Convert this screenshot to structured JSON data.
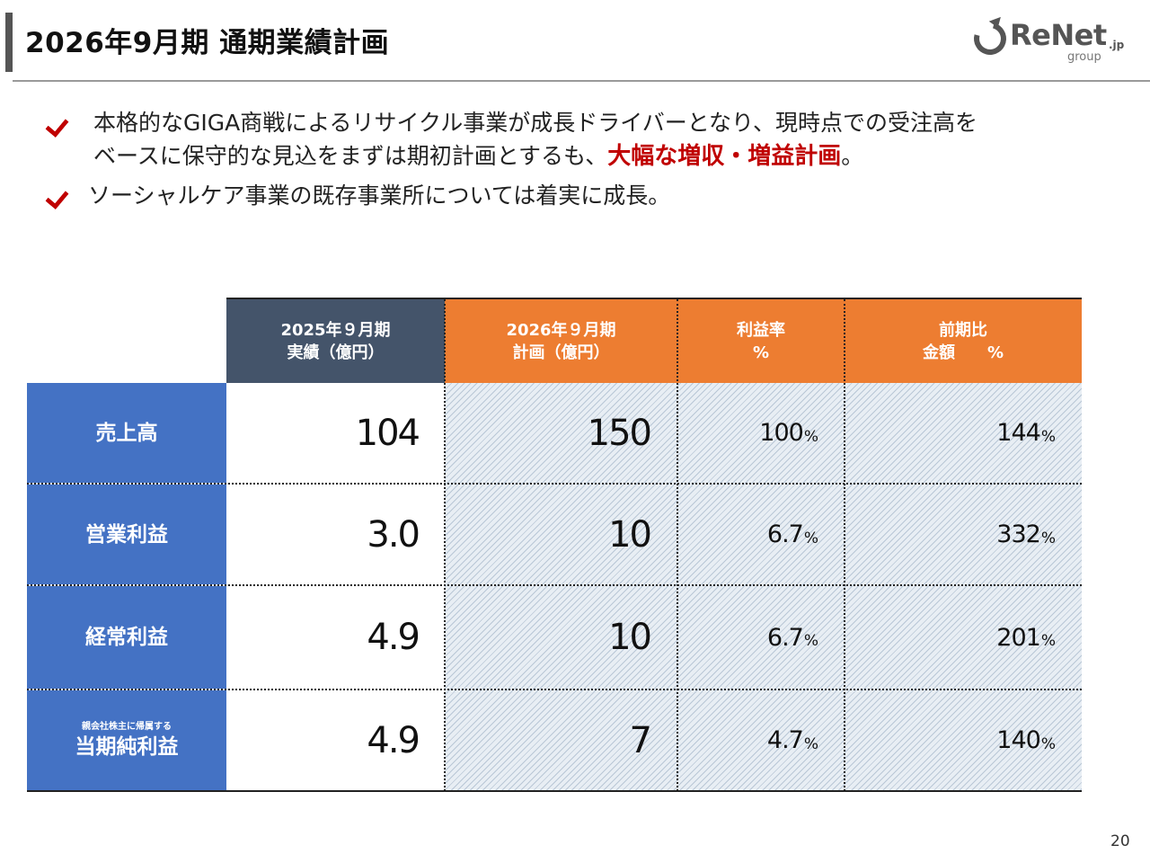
{
  "header": {
    "title": "2026年9月期 通期業績計画",
    "logo": {
      "brand": "ReNet",
      "suffix": ".jp",
      "sub": "group"
    }
  },
  "bullets": [
    {
      "line1": "本格的なGIGA商戦によるリサイクル事業が成長ドライバーとなり、現時点での受注高を",
      "line2_pre": "ベースに保守的な見込をまずは期初計画とするも、",
      "line2_emph": "大幅な増収・増益計画",
      "line2_post": "。",
      "icon": "check-icon"
    },
    {
      "line1": "ソーシャルケア事業の既存事業所については着実に成長。",
      "icon": "check-icon"
    }
  ],
  "table": {
    "headers": {
      "actual_line1": "2025年９月期",
      "actual_line2": "実績（億円）",
      "plan_line1": "2026年９月期",
      "plan_line2": "計画（億円）",
      "margin_line1": "利益率",
      "margin_line2": "%",
      "yoy_line1": "前期比",
      "yoy_line2": "金額　　%"
    },
    "rows": [
      {
        "label_small": "",
        "label": "売上高",
        "actual": "104",
        "plan": "150",
        "margin": "100",
        "yoy": "144"
      },
      {
        "label_small": "",
        "label": "営業利益",
        "actual": "3.0",
        "plan": "10",
        "margin": "6.7",
        "yoy": "332"
      },
      {
        "label_small": "",
        "label": "経常利益",
        "actual": "4.9",
        "plan": "10",
        "margin": "6.7",
        "yoy": "201"
      },
      {
        "label_small": "親会社株主に帰属する",
        "label": "当期純利益",
        "actual": "4.9",
        "plan": "7",
        "margin": "4.7",
        "yoy": "140"
      }
    ],
    "pct_symbol": "%",
    "colors": {
      "dark_header": "#44546a",
      "orange_header": "#ed7d31",
      "row_header": "#4472c4",
      "emphasis": "#c00000"
    }
  },
  "footer": {
    "page_number": "20"
  }
}
